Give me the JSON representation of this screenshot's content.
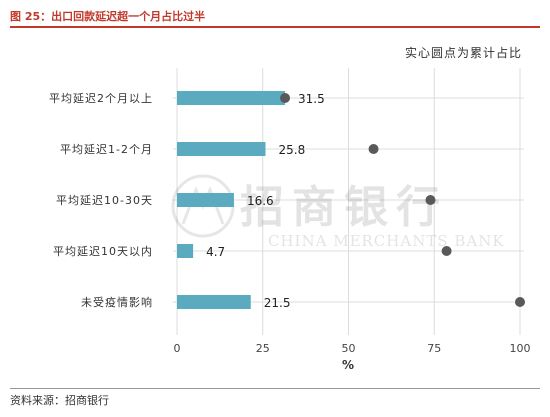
{
  "figure": {
    "title": "图 25：出口回款延迟超一个月占比过半",
    "subtitle": "实心圆点为累计占比",
    "source": "资料来源：招商银行",
    "watermark_cn": "招商银行",
    "watermark_en": "CHINA MERCHANTS BANK"
  },
  "colors": {
    "bar": "#5aaac0",
    "dot": "#595959",
    "grid": "#dcdcdc",
    "title": "#c0392b"
  },
  "chart_data": {
    "type": "bar",
    "orientation": "horizontal",
    "categories": [
      "平均延迟2个月以上",
      "平均延迟1-2个月",
      "平均延迟10-30天",
      "平均延迟10天以内",
      "未受疫情影响"
    ],
    "series": [
      {
        "values": [
          31.5,
          25.8,
          16.6,
          4.7,
          21.5
        ],
        "style": "bar"
      },
      {
        "values": [
          31.5,
          57.3,
          73.9,
          78.6,
          100
        ],
        "style": "dot"
      }
    ],
    "data_labels": [
      "31.5",
      "25.8",
      "16.6",
      "4.7",
      "21.5"
    ],
    "xlabel": "%",
    "xlim": [
      0,
      100
    ],
    "xticks": [
      0,
      25,
      50,
      75,
      100
    ],
    "grid": true
  }
}
